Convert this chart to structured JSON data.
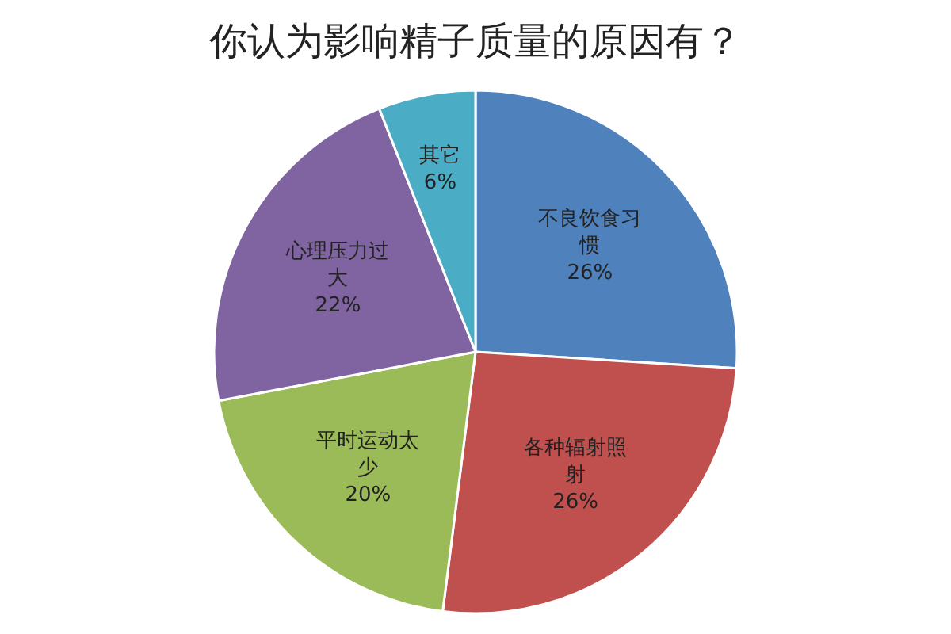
{
  "chart_data": {
    "type": "pie",
    "title": "你认为影响精子质量的原因有？",
    "categories": [
      "不良饮食习惯",
      "各种辐射照射",
      "平时运动太少",
      "心理压力过大",
      "其它"
    ],
    "values": [
      26,
      26,
      20,
      22,
      6
    ],
    "value_labels": [
      "26%",
      "26%",
      "20%",
      "22%",
      "6%"
    ],
    "colors": [
      "#4f81bd",
      "#c0504d",
      "#9bbb59",
      "#8064a2",
      "#4bacc6"
    ]
  }
}
